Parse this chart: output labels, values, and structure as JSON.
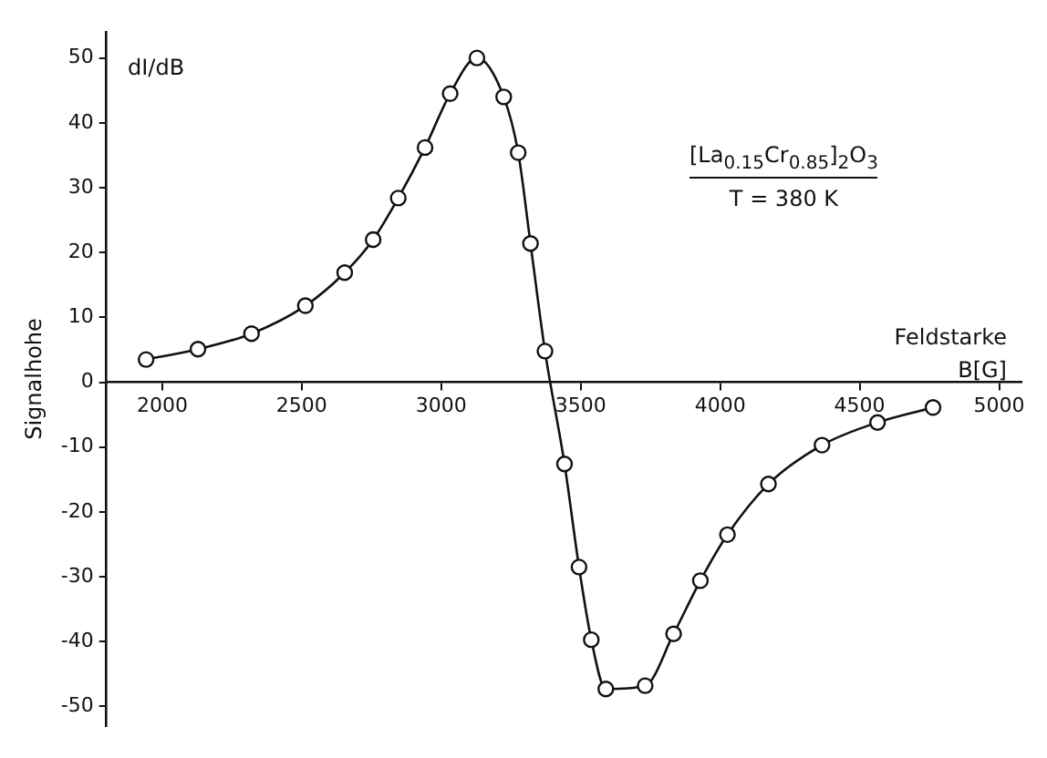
{
  "chart_data": {
    "type": "line",
    "xlabel": "Feldstarke B[G]",
    "ylabel": "Signalhohe",
    "annotations": [
      "dI/dB",
      "[La$_{0.15}$Cr$_{0.85}$]$_{2}$O$_{3}$",
      "T = 380 K"
    ],
    "series": [
      {
        "color": "#111111",
        "x": [
          1942,
          2128,
          2320,
          2513,
          2654,
          2756,
          2846,
          2942,
          3032,
          3128,
          3224,
          3276,
          3320,
          3372,
          3442,
          3494,
          3538,
          3590,
          3731,
          3833,
          3929,
          4026,
          4173,
          4365,
          4564,
          4763
        ],
        "values": [
          3.5,
          5.1,
          7.5,
          11.8,
          16.9,
          22,
          28.4,
          36.2,
          44.5,
          50,
          44,
          35.4,
          21.4,
          4.8,
          -12.6,
          -28.5,
          -39.7,
          -47.3,
          -46.8,
          -38.8,
          -30.6,
          -23.5,
          -15.7,
          -9.7,
          -6.2,
          -3.9
        ]
      }
    ],
    "xlim": [
      1800,
      5080
    ],
    "xticks": [
      2000,
      2500,
      3000,
      3500,
      4000,
      4500,
      5000
    ],
    "ylim": [
      -53,
      54
    ],
    "yticks": [
      -50,
      -40,
      -30,
      -20,
      -10,
      0,
      10,
      20,
      30,
      40,
      50
    ],
    "grid": false,
    "legend": false,
    "marker": "circle",
    "line_style": "solid"
  }
}
